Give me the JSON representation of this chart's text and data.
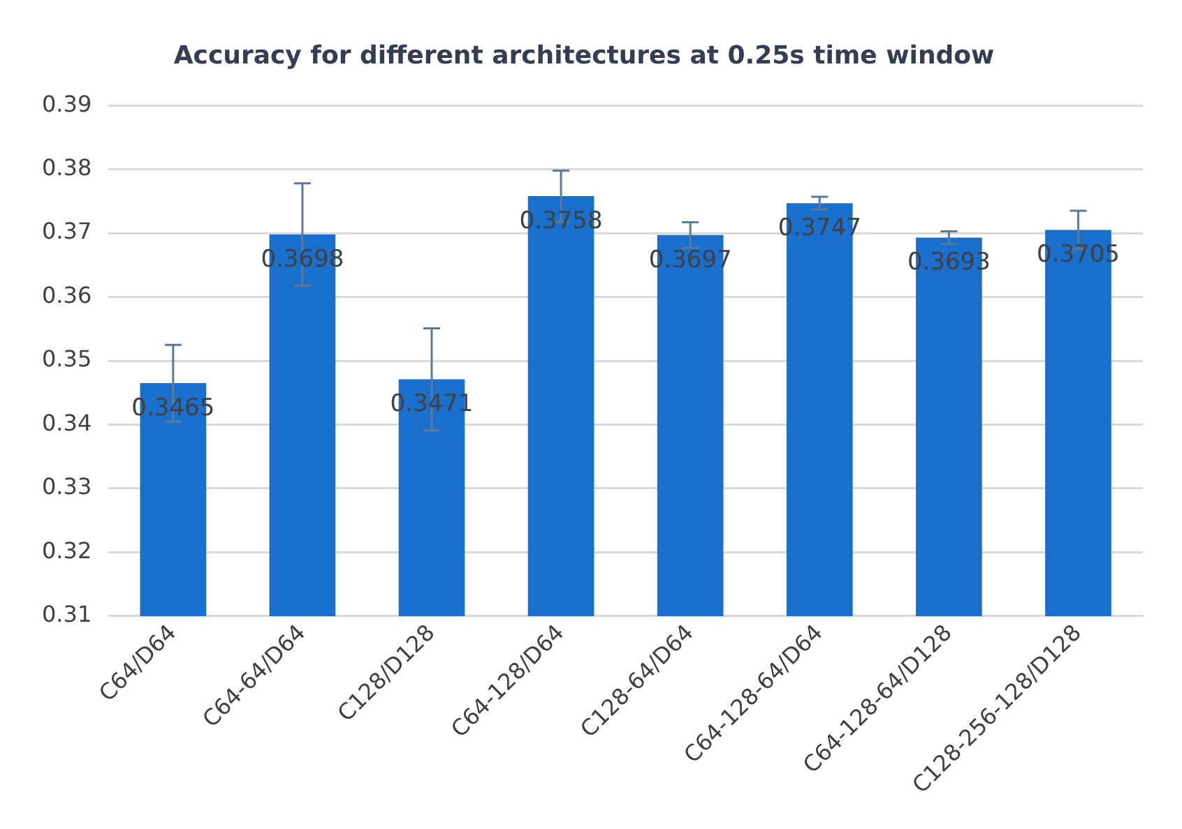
{
  "chart_data": {
    "type": "bar",
    "title": "Accuracy for different architectures at 0.25s time window",
    "categories": [
      "C64/D64",
      "C64-64/D64",
      "C128/D128",
      "C64-128/D64",
      "C128-64/D64",
      "C64-128-64/D64",
      "C64-128-64/D128",
      "C128-256-128/D128"
    ],
    "values": [
      0.3465,
      0.3698,
      0.3471,
      0.3758,
      0.3697,
      0.3747,
      0.3693,
      0.3705
    ],
    "errors": [
      0.006,
      0.008,
      0.008,
      0.004,
      0.002,
      0.001,
      0.001,
      0.003
    ],
    "color": "#1a6fcc",
    "ylim": [
      0.31,
      0.39
    ],
    "yticks": [
      0.31,
      0.32,
      0.33,
      0.34,
      0.35,
      0.36,
      0.37,
      0.38,
      0.39
    ],
    "grid": "y",
    "data_labels": true,
    "legend": false
  }
}
